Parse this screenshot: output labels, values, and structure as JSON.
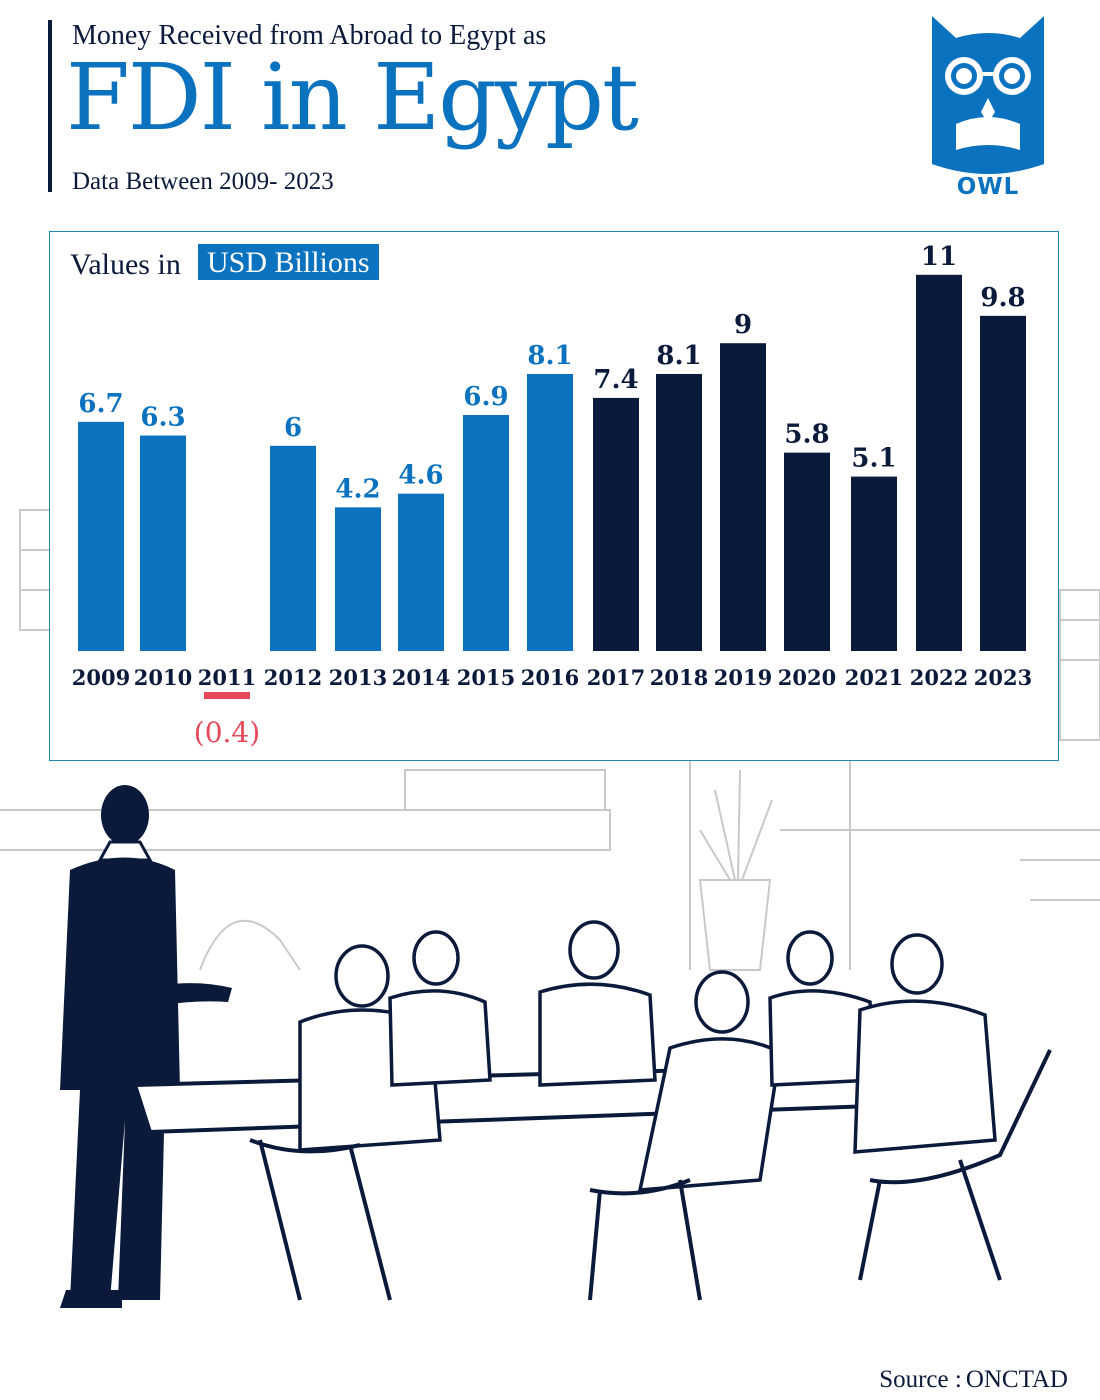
{
  "header": {
    "subtitle_top": "Money Received from Abroad to Egypt as",
    "title": "FDI in Egypt",
    "subtitle_bottom": "Data Between 2009- 2023"
  },
  "logo": {
    "text": "OWL",
    "icon": "owl-icon"
  },
  "chart_header": {
    "values_in": "Values in",
    "unit": "USD Billions"
  },
  "chart_data": {
    "type": "bar",
    "categories": [
      "2009",
      "2010",
      "2011",
      "2012",
      "2013",
      "2014",
      "2015",
      "2016",
      "2017",
      "2018",
      "2019",
      "2020",
      "2021",
      "2022",
      "2023"
    ],
    "values": [
      6.7,
      6.3,
      -0.4,
      6,
      4.2,
      4.6,
      6.9,
      8.1,
      7.4,
      8.1,
      9,
      5.8,
      5.1,
      11,
      9.8
    ],
    "labels": [
      "6.7",
      "6.3",
      "(0.4)",
      "6",
      "4.2",
      "4.6",
      "6.9",
      "8.1",
      "7.4",
      "8.1",
      "9",
      "5.8",
      "5.1",
      "11",
      "9.8"
    ],
    "title": "FDI in Egypt",
    "xlabel": "",
    "ylabel": "Values in USD Billions",
    "ylim": [
      -0.4,
      11
    ],
    "grid": false,
    "colors": {
      "2009-2016": "#0a72be",
      "2017-2023": "#0b1a3b",
      "negative": "#e8495a"
    }
  },
  "footer": {
    "source_label": "Source :",
    "source_value": "ONCTAD"
  }
}
